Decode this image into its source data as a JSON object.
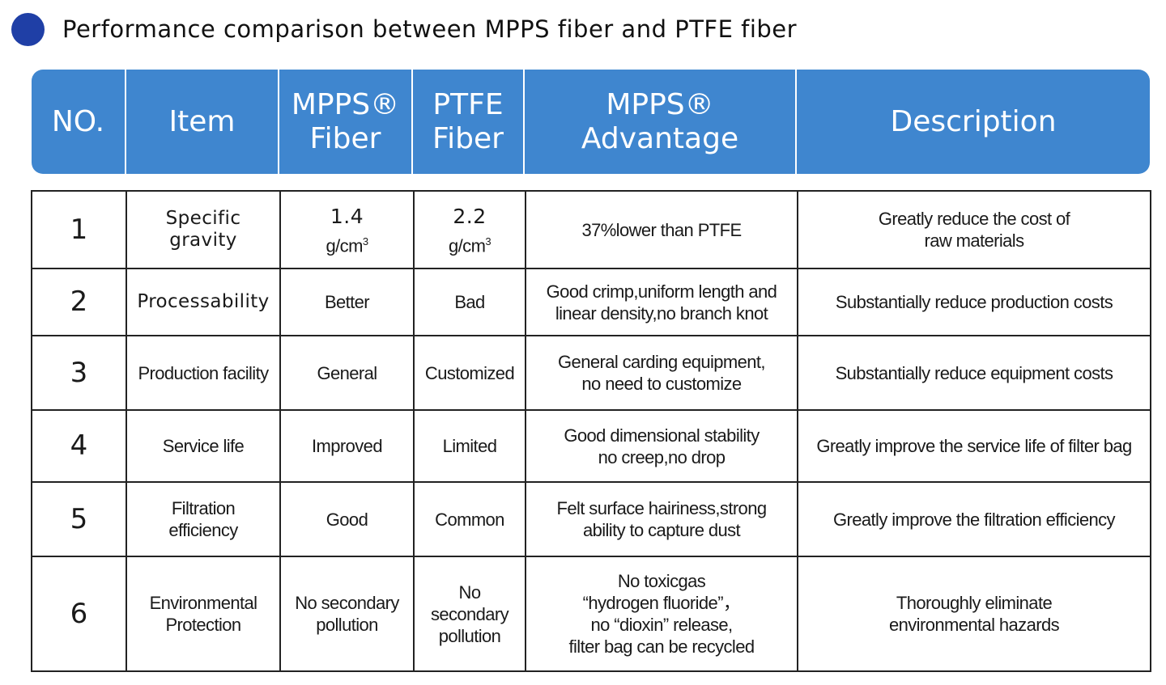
{
  "title": "Performance comparison between MPPS fiber and PTFE fiber",
  "header": {
    "no": "NO.",
    "item": "Item",
    "mpps_fiber": [
      "MPPS®",
      "Fiber"
    ],
    "ptfe_fiber": [
      "PTFE",
      "Fiber"
    ],
    "mpps_advantage": [
      "MPPS®",
      "Advantage"
    ],
    "description": "Description"
  },
  "colors": {
    "header_blue": "#3f86cf",
    "title_dot": "#1f3fa6"
  },
  "rows": [
    {
      "no": "1",
      "item": [
        "Specific gravity"
      ],
      "mpps": {
        "value": "1.4",
        "unit": "g/cm",
        "sup": "3"
      },
      "ptfe": {
        "value": "2.2",
        "unit": "g/cm",
        "sup": "3"
      },
      "advantage": [
        "37%lower than PTFE"
      ],
      "description": [
        "Greatly reduce the cost of",
        "raw materials"
      ]
    },
    {
      "no": "2",
      "item": [
        "Processability"
      ],
      "mpps": [
        "Better"
      ],
      "ptfe": [
        "Bad"
      ],
      "advantage": [
        "Good crimp,uniform length and",
        "linear density,no branch knot"
      ],
      "description": [
        "Substantially reduce production costs"
      ]
    },
    {
      "no": "3",
      "item": [
        "Production facility"
      ],
      "mpps": [
        "General"
      ],
      "ptfe": [
        "Customized"
      ],
      "advantage": [
        "General carding equipment,",
        "no need to customize"
      ],
      "description": [
        "Substantially reduce equipment costs"
      ]
    },
    {
      "no": "4",
      "item": [
        "Service life"
      ],
      "mpps": [
        "Improved"
      ],
      "ptfe": [
        "Limited"
      ],
      "advantage": [
        "Good dimensional stability",
        "no creep,no drop"
      ],
      "description": [
        "Greatly improve the service life of filter bag"
      ]
    },
    {
      "no": "5",
      "item": [
        "Filtration",
        "efficiency"
      ],
      "mpps": [
        "Good"
      ],
      "ptfe": [
        "Common"
      ],
      "advantage": [
        "Felt surface hairiness,strong",
        "ability to capture dust"
      ],
      "description": [
        "Greatly improve the filtration efficiency"
      ]
    },
    {
      "no": "6",
      "item": [
        "Environmental",
        "Protection"
      ],
      "mpps": [
        "No secondary",
        "pollution"
      ],
      "ptfe": [
        "No secondary",
        "pollution"
      ],
      "advantage": [
        "No toxicgas",
        "“hydrogen fluoride”，",
        "no “dioxin” release,",
        "filter bag can be recycled"
      ],
      "description": [
        "Thoroughly eliminate",
        "environmental hazards"
      ]
    }
  ]
}
